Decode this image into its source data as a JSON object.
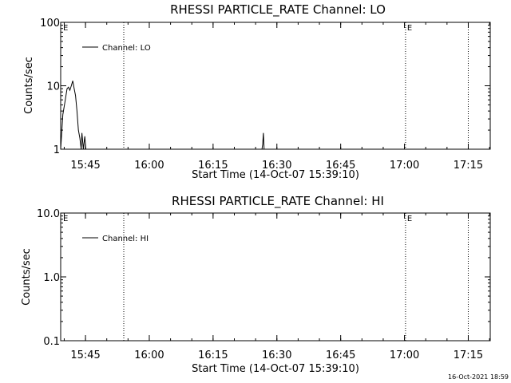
{
  "footer": {
    "timestamp": "16-Oct-2021 18:59"
  },
  "chart_data": [
    {
      "type": "line",
      "title": "RHESSI PARTICLE_RATE Channel: LO",
      "xlabel": "Start Time (14-Oct-07 15:39:10)",
      "ylabel": "Counts/sec",
      "yscale": "log",
      "ylim": [
        1,
        100
      ],
      "ytick_labels": [
        "1",
        "10",
        "100"
      ],
      "xlim": [
        "15:39:10",
        "17:20:10"
      ],
      "xtick_labels": [
        "15:45",
        "16:00",
        "16:15",
        "16:30",
        "16:45",
        "17:00",
        "17:15"
      ],
      "legend": {
        "label": "Channel: LO",
        "position": "top-left"
      },
      "vertical_markers": [
        {
          "time": "15:54:00",
          "label": ""
        },
        {
          "time": "17:00:15",
          "label": "E"
        },
        {
          "time": "17:15:00",
          "label": ""
        }
      ],
      "start_marker_label": "E",
      "series": [
        {
          "name": "Channel: LO",
          "x": [
            "15:39:10",
            "15:39:40",
            "15:40:10",
            "15:40:40",
            "15:41:00",
            "15:41:20",
            "15:41:40",
            "15:42:00",
            "15:42:20",
            "15:42:40",
            "15:43:00",
            "15:43:20",
            "15:43:40",
            "15:44:00",
            "15:44:10",
            "15:44:30",
            "15:44:50",
            "15:45:05"
          ],
          "y": [
            1.0,
            3.5,
            5.5,
            9.0,
            9.5,
            8.5,
            10.0,
            12.0,
            9.0,
            7.0,
            4.0,
            2.0,
            1.5,
            1.0,
            1.8,
            1.0,
            1.6,
            0.9
          ]
        },
        {
          "name": "",
          "x": [
            "16:26:30",
            "16:26:40",
            "16:26:50",
            "16:27:00"
          ],
          "y": [
            1.0,
            1.2,
            1.8,
            1.0
          ]
        }
      ]
    },
    {
      "type": "line",
      "title": "RHESSI PARTICLE_RATE Channel: HI",
      "xlabel": "Start Time (14-Oct-07 15:39:10)",
      "ylabel": "Counts/sec",
      "yscale": "log",
      "ylim": [
        0.1,
        10.0
      ],
      "ytick_labels": [
        "0.1",
        "1.0",
        "10.0"
      ],
      "xlim": [
        "15:39:10",
        "17:20:10"
      ],
      "xtick_labels": [
        "15:45",
        "16:00",
        "16:15",
        "16:30",
        "16:45",
        "17:00",
        "17:15"
      ],
      "legend": {
        "label": "Channel: HI",
        "position": "top-left"
      },
      "vertical_markers": [
        {
          "time": "15:54:00",
          "label": ""
        },
        {
          "time": "17:00:15",
          "label": "E"
        },
        {
          "time": "17:15:00",
          "label": ""
        }
      ],
      "start_marker_label": "E",
      "series": [
        {
          "name": "Channel: HI",
          "x": [],
          "y": []
        }
      ]
    }
  ]
}
